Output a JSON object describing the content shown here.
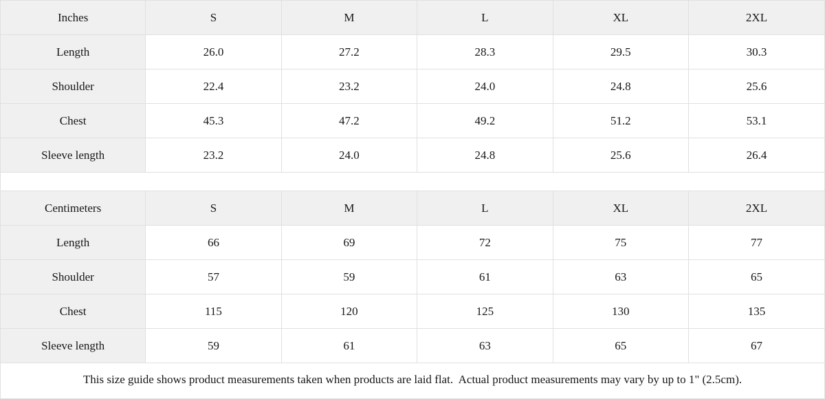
{
  "chart_data": [
    {
      "type": "table",
      "unit_label": "Inches",
      "size_columns": [
        "S",
        "M",
        "L",
        "XL",
        "2XL"
      ],
      "rows": [
        {
          "label": "Length",
          "values": [
            "26.0",
            "27.2",
            "28.3",
            "29.5",
            "30.3"
          ]
        },
        {
          "label": "Shoulder",
          "values": [
            "22.4",
            "23.2",
            "24.0",
            "24.8",
            "25.6"
          ]
        },
        {
          "label": "Chest",
          "values": [
            "45.3",
            "47.2",
            "49.2",
            "51.2",
            "53.1"
          ]
        },
        {
          "label": "Sleeve length",
          "values": [
            "23.2",
            "24.0",
            "24.8",
            "25.6",
            "26.4"
          ]
        }
      ]
    },
    {
      "type": "table",
      "unit_label": "Centimeters",
      "size_columns": [
        "S",
        "M",
        "L",
        "XL",
        "2XL"
      ],
      "rows": [
        {
          "label": "Length",
          "values": [
            "66",
            "69",
            "72",
            "75",
            "77"
          ]
        },
        {
          "label": "Shoulder",
          "values": [
            "57",
            "59",
            "61",
            "63",
            "65"
          ]
        },
        {
          "label": "Chest",
          "values": [
            "115",
            "120",
            "125",
            "130",
            "135"
          ]
        },
        {
          "label": "Sleeve length",
          "values": [
            "59",
            "61",
            "63",
            "65",
            "67"
          ]
        }
      ]
    }
  ],
  "colors": {
    "header_background": "#f0f0f0",
    "border": "#e0e0e0",
    "text": "#161616"
  },
  "footer": {
    "note": "This size guide shows product measurements taken when products are laid flat.  Actual product measurements may vary by up to 1\" (2.5cm)."
  }
}
